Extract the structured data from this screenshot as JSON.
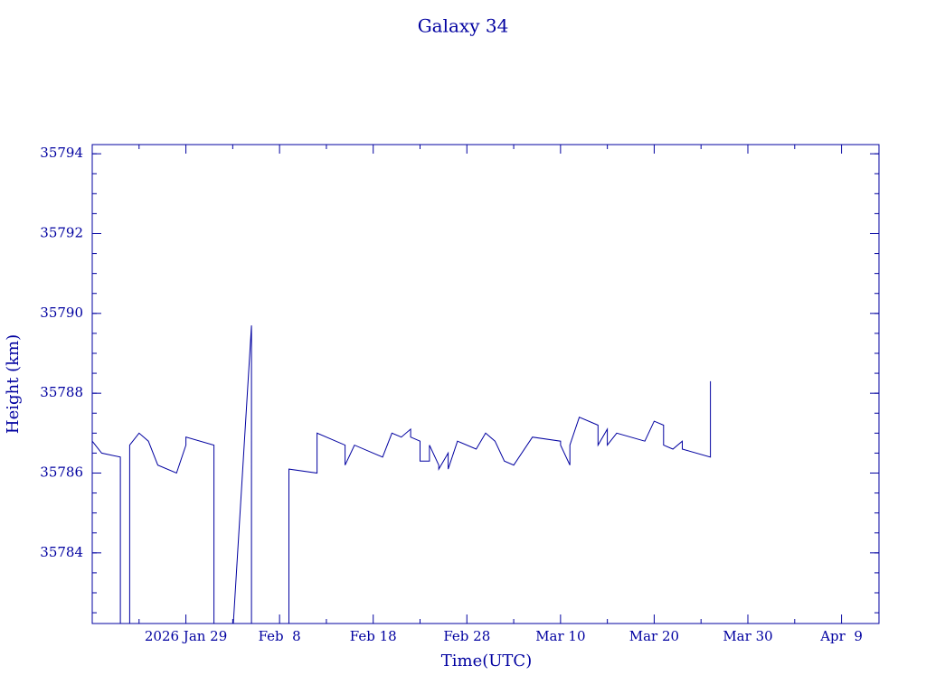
{
  "chart_data": {
    "type": "line",
    "title": "Galaxy 34",
    "xlabel": "Time(UTC)",
    "ylabel": "Height (km)",
    "color": "#0000a0",
    "xlim": [
      "2026-01-19",
      "2026-04-13"
    ],
    "xticks": [
      {
        "value": "2026-01-29",
        "label": "2026 Jan 29"
      },
      {
        "value": "2026-02-08",
        "label": "Feb  8"
      },
      {
        "value": "2026-02-18",
        "label": "Feb 18"
      },
      {
        "value": "2026-02-28",
        "label": "Feb 28"
      },
      {
        "value": "2026-03-10",
        "label": "Mar 10"
      },
      {
        "value": "2026-03-20",
        "label": "Mar 20"
      },
      {
        "value": "2026-03-30",
        "label": "Mar 30"
      },
      {
        "value": "2026-04-09",
        "label": "Apr  9"
      }
    ],
    "ylim": [
      35782.23,
      35794.23
    ],
    "yticks": [
      35784,
      35786,
      35788,
      35790,
      35792,
      35794
    ],
    "x": [
      "2026-01-19",
      "2026-01-20",
      "2026-01-22",
      "2026-01-22",
      "2026-01-22",
      "2026-01-23",
      "2026-01-23",
      "2026-01-24",
      "2026-01-25",
      "2026-01-26",
      "2026-01-28",
      "2026-01-29",
      "2026-01-29",
      "2026-02-01",
      "2026-02-01",
      "2026-02-01",
      "2026-02-03",
      "2026-02-05",
      "2026-02-05",
      "2026-02-05",
      "2026-02-05",
      "2026-02-09",
      "2026-02-09",
      "2026-02-12",
      "2026-02-12",
      "2026-02-15",
      "2026-02-15",
      "2026-02-16",
      "2026-02-18",
      "2026-02-19",
      "2026-02-20",
      "2026-02-21",
      "2026-02-22",
      "2026-02-22",
      "2026-02-23",
      "2026-02-23",
      "2026-02-24",
      "2026-02-24",
      "2026-02-25",
      "2026-02-25",
      "2026-02-26",
      "2026-02-26",
      "2026-02-27",
      "2026-03-01",
      "2026-03-02",
      "2026-03-03",
      "2026-03-04",
      "2026-03-05",
      "2026-03-07",
      "2026-03-10",
      "2026-03-10",
      "2026-03-11",
      "2026-03-11",
      "2026-03-12",
      "2026-03-14",
      "2026-03-14",
      "2026-03-15",
      "2026-03-15",
      "2026-03-16",
      "2026-03-19",
      "2026-03-20",
      "2026-03-21",
      "2026-03-21",
      "2026-03-22",
      "2026-03-23",
      "2026-03-23",
      "2026-03-26",
      "2026-03-26"
    ],
    "values": [
      35786.8,
      35786.5,
      35786.4,
      35784.4,
      35782.0,
      35782.0,
      35786.7,
      35787.0,
      35786.8,
      35786.2,
      35786.0,
      35786.7,
      35786.9,
      35786.7,
      35784.4,
      35782.0,
      35782.0,
      35789.7,
      35787.9,
      35784.8,
      35782.0,
      35782.0,
      35786.1,
      35786.0,
      35787.0,
      35786.7,
      35786.2,
      35786.7,
      35786.5,
      35786.4,
      35787.0,
      35786.9,
      35787.1,
      35786.9,
      35786.8,
      35786.3,
      35786.3,
      35786.7,
      35786.2,
      35786.1,
      35786.5,
      35786.1,
      35786.8,
      35786.6,
      35787.0,
      35786.8,
      35786.3,
      35786.2,
      35786.9,
      35786.8,
      35786.7,
      35786.2,
      35786.7,
      35787.4,
      35787.2,
      35786.7,
      35787.1,
      35786.7,
      35787.0,
      35786.8,
      35787.3,
      35787.2,
      35786.7,
      35786.6,
      35786.8,
      35786.6,
      35786.4,
      35788.3
    ]
  }
}
